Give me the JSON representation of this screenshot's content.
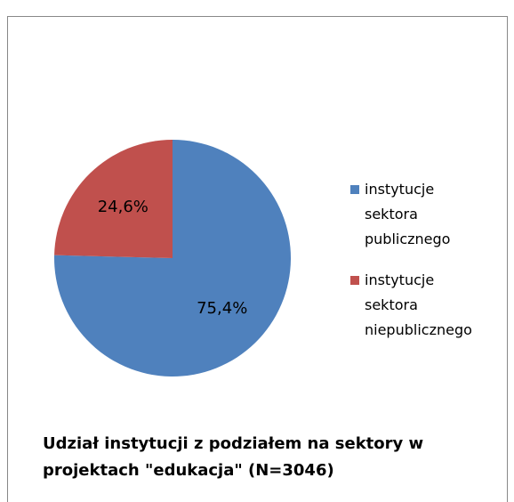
{
  "chart_data": {
    "type": "pie",
    "title": "Udział instytucji z podziałem na sektory w projektach \"edukacja\" (N=3046)",
    "categories": [
      "instytucje sektora publicznego",
      "instytucje sektora niepublicznego"
    ],
    "values": [
      75.4,
      24.6
    ],
    "value_labels": [
      "75,4%",
      "24,6%"
    ],
    "colors": [
      "#4f81bd",
      "#c0504d"
    ],
    "legend": "right"
  }
}
